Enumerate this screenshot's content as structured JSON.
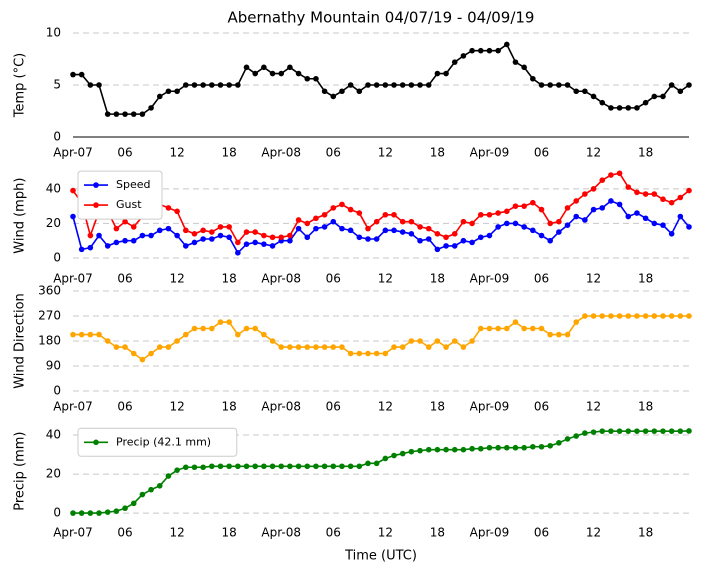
{
  "chart_data": [
    {
      "type": "line",
      "title": "Abernathy Mountain 04/07/19 - 04/09/19",
      "y_label": "Temp (°C)",
      "x": [
        0,
        1,
        2,
        3,
        4,
        5,
        6,
        7,
        8,
        9,
        10,
        11,
        12,
        13,
        14,
        15,
        16,
        17,
        18,
        19,
        20,
        21,
        22,
        23,
        24,
        25,
        26,
        27,
        28,
        29,
        30,
        31,
        32,
        33,
        34,
        35,
        36,
        37,
        38,
        39,
        40,
        41,
        42,
        43,
        44,
        45,
        46,
        47,
        48,
        49,
        50,
        51,
        52,
        53,
        54,
        55,
        56,
        57,
        58,
        59,
        60,
        61,
        62,
        63,
        64,
        65,
        66,
        67,
        68,
        69,
        70,
        71
      ],
      "series": [
        {
          "name": "Temp",
          "color": "#000000",
          "values": [
            6,
            6,
            5,
            5,
            2.2,
            2.2,
            2.2,
            2.2,
            2.2,
            2.8,
            3.9,
            4.4,
            4.4,
            5,
            5,
            5,
            5,
            5,
            5,
            5,
            6.7,
            6.1,
            6.7,
            6.1,
            6.1,
            6.7,
            6.1,
            5.6,
            5.6,
            4.4,
            3.9,
            4.4,
            5,
            4.4,
            5,
            5,
            5,
            5,
            5,
            5,
            5,
            5,
            6.1,
            6.1,
            7.2,
            7.8,
            8.3,
            8.3,
            8.3,
            8.3,
            8.9,
            7.2,
            6.7,
            5.6,
            5,
            5,
            5,
            5,
            4.4,
            4.4,
            3.9,
            3.3,
            2.8,
            2.8,
            2.8,
            2.8,
            3.3,
            3.9,
            3.9,
            5,
            4.4,
            5
          ]
        }
      ],
      "xlim": [
        0,
        71
      ],
      "xticks": [
        {
          "value": 0,
          "label": "Apr-07"
        },
        {
          "value": 6,
          "label": "06"
        },
        {
          "value": 12,
          "label": "12"
        },
        {
          "value": 18,
          "label": "18"
        },
        {
          "value": 24,
          "label": "Apr-08"
        },
        {
          "value": 30,
          "label": "06"
        },
        {
          "value": 36,
          "label": "12"
        },
        {
          "value": 42,
          "label": "18"
        },
        {
          "value": 48,
          "label": "Apr-09"
        },
        {
          "value": 54,
          "label": "06"
        },
        {
          "value": 60,
          "label": "12"
        },
        {
          "value": 66,
          "label": "18"
        }
      ],
      "ylim": [
        0,
        10
      ],
      "yticks": [
        0,
        5,
        10
      ],
      "grid": true
    },
    {
      "type": "line",
      "y_label": "Wind (mph)",
      "x": [
        0,
        1,
        2,
        3,
        4,
        5,
        6,
        7,
        8,
        9,
        10,
        11,
        12,
        13,
        14,
        15,
        16,
        17,
        18,
        19,
        20,
        21,
        22,
        23,
        24,
        25,
        26,
        27,
        28,
        29,
        30,
        31,
        32,
        33,
        34,
        35,
        36,
        37,
        38,
        39,
        40,
        41,
        42,
        43,
        44,
        45,
        46,
        47,
        48,
        49,
        50,
        51,
        52,
        53,
        54,
        55,
        56,
        57,
        58,
        59,
        60,
        61,
        62,
        63,
        64,
        65,
        66,
        67,
        68,
        69,
        70,
        71
      ],
      "series": [
        {
          "name": "Speed",
          "color": "#0000ff",
          "values": [
            24,
            5,
            6,
            13,
            7,
            9,
            10,
            10,
            13,
            13,
            16,
            17,
            13,
            7,
            9,
            11,
            11,
            13,
            12,
            3,
            8,
            9,
            8,
            7,
            10,
            10,
            17,
            12,
            17,
            18,
            21,
            17,
            16,
            12,
            11,
            11,
            16,
            16,
            15,
            14,
            10,
            11,
            5,
            7,
            7,
            10,
            9,
            12,
            13,
            18,
            20,
            20,
            18,
            16,
            13,
            10,
            15,
            19,
            24,
            22,
            28,
            29,
            33,
            31,
            24,
            26,
            23,
            20,
            19,
            14,
            24,
            18
          ]
        },
        {
          "name": "Gust",
          "color": "#ff0000",
          "values": [
            39,
            32,
            13,
            27,
            27,
            17,
            21,
            18,
            24,
            25,
            31,
            29,
            27,
            16,
            14,
            16,
            15,
            18,
            18,
            9,
            15,
            15,
            13,
            12,
            12,
            13,
            22,
            20,
            23,
            25,
            29,
            31,
            28,
            26,
            17,
            21,
            25,
            25,
            21,
            21,
            18,
            17,
            14,
            12,
            14,
            21,
            20,
            25,
            25,
            26,
            27,
            30,
            30,
            32,
            28,
            20,
            21,
            29,
            33,
            37,
            40,
            45,
            48,
            49,
            41,
            38,
            37,
            37,
            34,
            32,
            35,
            39
          ]
        }
      ],
      "xlim": [
        0,
        71
      ],
      "xticks": [
        {
          "value": 0,
          "label": "Apr-07"
        },
        {
          "value": 6,
          "label": "06"
        },
        {
          "value": 12,
          "label": "12"
        },
        {
          "value": 18,
          "label": "18"
        },
        {
          "value": 24,
          "label": "Apr-08"
        },
        {
          "value": 30,
          "label": "06"
        },
        {
          "value": 36,
          "label": "12"
        },
        {
          "value": 42,
          "label": "18"
        },
        {
          "value": 48,
          "label": "Apr-09"
        },
        {
          "value": 54,
          "label": "06"
        },
        {
          "value": 60,
          "label": "12"
        },
        {
          "value": 66,
          "label": "18"
        }
      ],
      "ylim": [
        -3,
        52
      ],
      "yticks": [
        0,
        20,
        40
      ],
      "grid": true,
      "legend": "upper left"
    },
    {
      "type": "line",
      "y_label": "Wind Direction",
      "x": [
        0,
        1,
        2,
        3,
        4,
        5,
        6,
        7,
        8,
        9,
        10,
        11,
        12,
        13,
        14,
        15,
        16,
        17,
        18,
        19,
        20,
        21,
        22,
        23,
        24,
        25,
        26,
        27,
        28,
        29,
        30,
        31,
        32,
        33,
        34,
        35,
        36,
        37,
        38,
        39,
        40,
        41,
        42,
        43,
        44,
        45,
        46,
        47,
        48,
        49,
        50,
        51,
        52,
        53,
        54,
        55,
        56,
        57,
        58,
        59,
        60,
        61,
        62,
        63,
        64,
        65,
        66,
        67,
        68,
        69,
        70,
        71
      ],
      "series": [
        {
          "name": "Direction",
          "color": "#ffa500",
          "values": [
            203,
            203,
            203,
            203,
            180,
            158,
            158,
            135,
            113,
            135,
            158,
            158,
            180,
            203,
            225,
            225,
            225,
            248,
            248,
            203,
            225,
            225,
            203,
            180,
            158,
            158,
            158,
            158,
            158,
            158,
            158,
            158,
            135,
            135,
            135,
            135,
            135,
            158,
            158,
            180,
            180,
            158,
            180,
            158,
            180,
            158,
            180,
            225,
            225,
            225,
            225,
            248,
            225,
            225,
            225,
            203,
            203,
            203,
            248,
            270,
            270,
            270,
            270,
            270,
            270,
            270,
            270,
            270,
            270,
            270,
            270,
            270
          ]
        }
      ],
      "xlim": [
        0,
        71
      ],
      "xticks": [
        {
          "value": 0,
          "label": "Apr-07"
        },
        {
          "value": 6,
          "label": "06"
        },
        {
          "value": 12,
          "label": "12"
        },
        {
          "value": 18,
          "label": "18"
        },
        {
          "value": 24,
          "label": "Apr-08"
        },
        {
          "value": 30,
          "label": "06"
        },
        {
          "value": 36,
          "label": "12"
        },
        {
          "value": 42,
          "label": "18"
        },
        {
          "value": 48,
          "label": "Apr-09"
        },
        {
          "value": 54,
          "label": "06"
        },
        {
          "value": 60,
          "label": "12"
        },
        {
          "value": 66,
          "label": "18"
        }
      ],
      "ylim": [
        0,
        360
      ],
      "yticks": [
        0,
        90,
        180,
        270,
        360
      ],
      "grid": true
    },
    {
      "type": "line",
      "y_label": "Precip (mm)",
      "x_label": "Time (UTC)",
      "x": [
        0,
        1,
        2,
        3,
        4,
        5,
        6,
        7,
        8,
        9,
        10,
        11,
        12,
        13,
        14,
        15,
        16,
        17,
        18,
        19,
        20,
        21,
        22,
        23,
        24,
        25,
        26,
        27,
        28,
        29,
        30,
        31,
        32,
        33,
        34,
        35,
        36,
        37,
        38,
        39,
        40,
        41,
        42,
        43,
        44,
        45,
        46,
        47,
        48,
        49,
        50,
        51,
        52,
        53,
        54,
        55,
        56,
        57,
        58,
        59,
        60,
        61,
        62,
        63,
        64,
        65,
        66,
        67,
        68,
        69,
        70,
        71
      ],
      "series": [
        {
          "name": "Precip (42.1 mm)",
          "color": "#008000",
          "values": [
            0,
            0,
            0,
            0,
            0.5,
            1,
            2.5,
            5,
            9.5,
            12,
            14,
            19,
            22,
            23.5,
            23.5,
            23.5,
            24,
            24,
            24,
            24,
            24,
            24,
            24,
            24,
            24,
            24,
            24,
            24,
            24,
            24,
            24,
            24,
            24,
            24,
            25.5,
            25.5,
            28,
            29.5,
            30.5,
            31.5,
            32,
            32.5,
            32.5,
            32.5,
            32.5,
            32.5,
            33,
            33,
            33.5,
            33.5,
            33.5,
            33.5,
            33.5,
            34,
            34,
            34.5,
            36,
            38,
            39.5,
            41,
            41.5,
            42,
            42,
            42,
            42,
            42,
            42,
            42,
            42,
            42,
            42,
            42.1
          ]
        }
      ],
      "xlim": [
        0,
        71
      ],
      "xticks": [
        {
          "value": 0,
          "label": "Apr-07"
        },
        {
          "value": 6,
          "label": "06"
        },
        {
          "value": 12,
          "label": "12"
        },
        {
          "value": 18,
          "label": "18"
        },
        {
          "value": 24,
          "label": "Apr-08"
        },
        {
          "value": 30,
          "label": "06"
        },
        {
          "value": 36,
          "label": "12"
        },
        {
          "value": 42,
          "label": "18"
        },
        {
          "value": 48,
          "label": "Apr-09"
        },
        {
          "value": 54,
          "label": "06"
        },
        {
          "value": 60,
          "label": "12"
        },
        {
          "value": 66,
          "label": "18"
        }
      ],
      "ylim": [
        -2,
        45
      ],
      "yticks": [
        0,
        20,
        40
      ],
      "grid": true,
      "legend": "upper left"
    }
  ]
}
